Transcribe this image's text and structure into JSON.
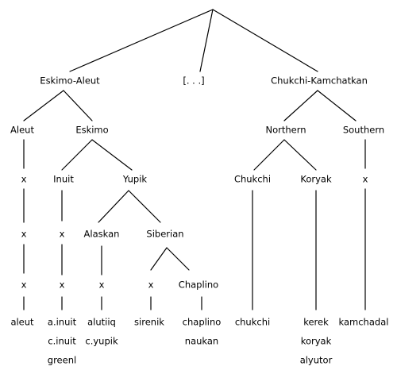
{
  "root": {
    "children": [
      "Eskimo-Aleut",
      "[...]",
      "Chukchi-Kamchatkan"
    ]
  },
  "eskimo_aleut": {
    "label": "Eskimo-Aleut",
    "aleut": {
      "label": "Aleut",
      "chain": [
        "x",
        "x",
        "x"
      ],
      "leaves": [
        "aleut"
      ]
    },
    "eskimo": {
      "label": "Eskimo",
      "inuit": {
        "label": "Inuit",
        "chain": [
          "x",
          "x"
        ],
        "leaves": [
          "a.inuit",
          "c.inuit",
          "greenl"
        ]
      },
      "yupik": {
        "label": "Yupik",
        "alaskan": {
          "label": "Alaskan",
          "chain": [
            "x"
          ],
          "leaves": [
            "alutiiq",
            "c.yupik"
          ]
        },
        "siberian": {
          "label": "Siberian",
          "x_branch": {
            "label": "x",
            "leaves": [
              "sirenik"
            ]
          },
          "chaplino": {
            "label": "Chaplino",
            "leaves": [
              "chaplino",
              "naukan"
            ]
          }
        }
      }
    }
  },
  "ellipsis": {
    "label": "[. . .]"
  },
  "chukchi_kamchatkan": {
    "label": "Chukchi-Kamchatkan",
    "northern": {
      "label": "Northern",
      "chukchi": {
        "label": "Chukchi",
        "leaves": [
          "chukchi"
        ]
      },
      "koryak": {
        "label": "Koryak",
        "leaves": [
          "kerek",
          "koryak",
          "alyutor"
        ]
      }
    },
    "southern": {
      "label": "Southern",
      "chain": [
        "x"
      ],
      "leaves": [
        "kamchadal"
      ]
    }
  }
}
